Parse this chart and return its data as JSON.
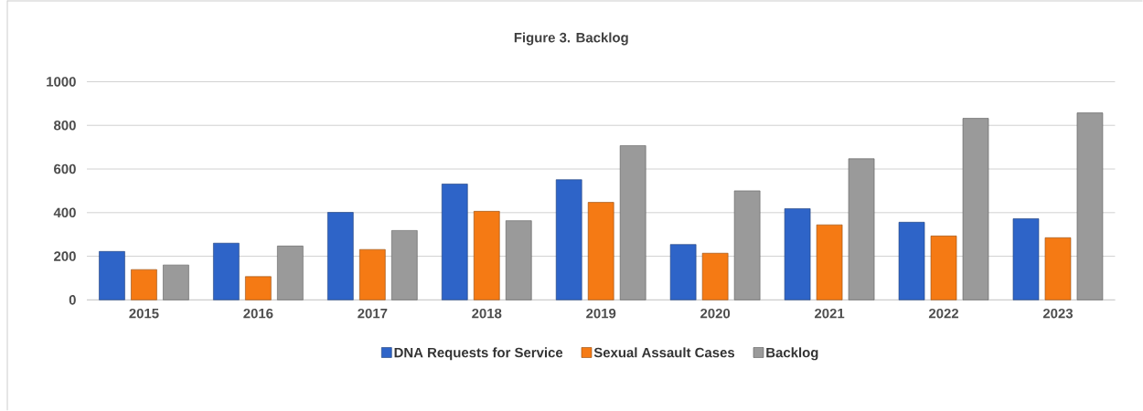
{
  "chart_data": {
    "type": "bar",
    "title": "Figure 3. Backlog",
    "categories": [
      "2015",
      "2016",
      "2017",
      "2018",
      "2019",
      "2020",
      "2021",
      "2022",
      "2023"
    ],
    "series": [
      {
        "name": "DNA Requests for Service",
        "color": "#2e64c8",
        "values": [
          222,
          260,
          401,
          531,
          551,
          254,
          418,
          356,
          372
        ]
      },
      {
        "name": "Sexual Assault Cases",
        "color": "#f57a14",
        "values": [
          139,
          107,
          231,
          406,
          447,
          214,
          344,
          293,
          285
        ]
      },
      {
        "name": "Backlog",
        "color": "#9a9a9a",
        "values": [
          160,
          247,
          318,
          363,
          707,
          500,
          647,
          832,
          857
        ]
      }
    ],
    "ylim": [
      0,
      1000
    ],
    "yticks": [
      0,
      200,
      400,
      600,
      800,
      1000
    ],
    "grid": "y",
    "legend": "bottom"
  }
}
